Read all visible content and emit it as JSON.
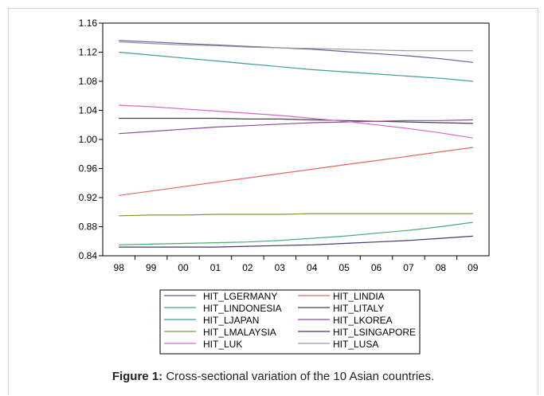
{
  "chart_data": {
    "type": "line",
    "title": "",
    "xlabel": "",
    "ylabel": "",
    "categories": [
      "98",
      "99",
      "00",
      "01",
      "02",
      "03",
      "04",
      "05",
      "06",
      "07",
      "08",
      "09"
    ],
    "ylim": [
      0.84,
      1.16
    ],
    "yticks": [
      "0.84",
      "0.88",
      "0.92",
      "0.96",
      "1.00",
      "1.04",
      "1.08",
      "1.12",
      "1.16"
    ],
    "grid": false,
    "legend_position": "bottom",
    "series": [
      {
        "name": "HIT_LGERMANY",
        "color": "#5b5f9e",
        "values": [
          1.136,
          1.134,
          1.132,
          1.13,
          1.128,
          1.126,
          1.124,
          1.121,
          1.118,
          1.115,
          1.111,
          1.106
        ]
      },
      {
        "name": "HIT_LINDIA",
        "color": "#e06a63",
        "values": [
          0.923,
          0.929,
          0.935,
          0.941,
          0.947,
          0.953,
          0.959,
          0.965,
          0.971,
          0.977,
          0.983,
          0.989
        ]
      },
      {
        "name": "HIT_LINDONESIA",
        "color": "#4aa878",
        "values": [
          0.855,
          0.856,
          0.857,
          0.858,
          0.859,
          0.861,
          0.864,
          0.867,
          0.871,
          0.875,
          0.88,
          0.886
        ]
      },
      {
        "name": "HIT_LITALY",
        "color": "#444444",
        "values": [
          1.029,
          1.029,
          1.029,
          1.029,
          1.028,
          1.028,
          1.027,
          1.026,
          1.025,
          1.024,
          1.023,
          1.022
        ]
      },
      {
        "name": "HIT_LJAPAN",
        "color": "#3f9e9a",
        "values": [
          1.12,
          1.116,
          1.112,
          1.108,
          1.104,
          1.1,
          1.096,
          1.093,
          1.09,
          1.087,
          1.084,
          1.08
        ]
      },
      {
        "name": "HIT_LKOREA",
        "color": "#8c4b9c",
        "values": [
          1.008,
          1.011,
          1.014,
          1.017,
          1.019,
          1.021,
          1.023,
          1.024,
          1.025,
          1.026,
          1.026,
          1.027
        ]
      },
      {
        "name": "HIT_LMALAYSIA",
        "color": "#7f9a3c",
        "values": [
          0.895,
          0.896,
          0.896,
          0.897,
          0.897,
          0.897,
          0.898,
          0.898,
          0.898,
          0.898,
          0.898,
          0.898
        ]
      },
      {
        "name": "HIT_LSINGAPORE",
        "color": "#3f3a72",
        "values": [
          0.852,
          0.852,
          0.852,
          0.852,
          0.853,
          0.854,
          0.855,
          0.857,
          0.859,
          0.861,
          0.864,
          0.867
        ]
      },
      {
        "name": "HIT_LUK",
        "color": "#d868c8",
        "values": [
          1.047,
          1.045,
          1.042,
          1.039,
          1.036,
          1.033,
          1.029,
          1.025,
          1.02,
          1.015,
          1.009,
          1.002
        ]
      },
      {
        "name": "HIT_LUSA",
        "color": "#9a9a9a",
        "values": [
          1.134,
          1.132,
          1.13,
          1.129,
          1.127,
          1.126,
          1.125,
          1.124,
          1.123,
          1.122,
          1.122,
          1.122
        ]
      }
    ]
  },
  "caption": {
    "prefix": "Figure 1:",
    "text": "Cross-sectional variation of the 10 Asian countries."
  }
}
